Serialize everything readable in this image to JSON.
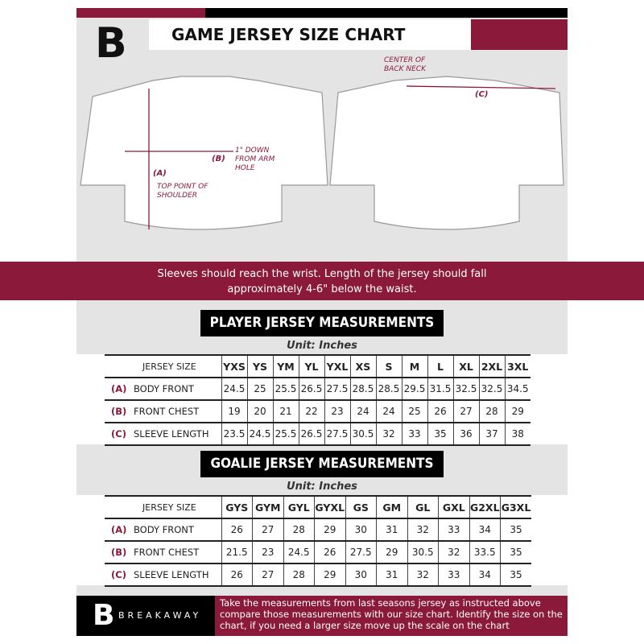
{
  "header": {
    "title": "GAME JERSEY SIZE CHART",
    "logo_letter": "B"
  },
  "diagram": {
    "labels": {
      "a": "(A)",
      "b": "(B)",
      "c": "(C)",
      "top_point": "TOP POINT OF SHOULDER",
      "arm_hole": "1\" DOWN FROM ARM HOLE",
      "back_neck": "CENTER OF BACK NECK"
    }
  },
  "notice": {
    "line1": "Sleeves should reach the wrist. Length of the jersey should fall",
    "line2": "approximately 4-6\" below the waist."
  },
  "colors": {
    "accent": "#8b1a3a",
    "dark": "#000000",
    "background": "#e4e4e4"
  },
  "player": {
    "title": "PLAYER JERSEY MEASUREMENTS",
    "unit": "Unit: Inches",
    "size_header": "JERSEY SIZE",
    "sizes": [
      "YXS",
      "YS",
      "YM",
      "YL",
      "YXL",
      "XS",
      "S",
      "M",
      "L",
      "XL",
      "2XL",
      "3XL"
    ],
    "rows": [
      {
        "code": "(A)",
        "label": "BODY FRONT",
        "values": [
          "24.5",
          "25",
          "25.5",
          "26.5",
          "27.5",
          "28.5",
          "28.5",
          "29.5",
          "31.5",
          "32.5",
          "32.5",
          "34.5"
        ]
      },
      {
        "code": "(B)",
        "label": "FRONT CHEST",
        "values": [
          "19",
          "20",
          "21",
          "22",
          "23",
          "24",
          "24",
          "25",
          "26",
          "27",
          "28",
          "29"
        ]
      },
      {
        "code": "(C)",
        "label": "SLEEVE LENGTH",
        "values": [
          "23.5",
          "24.5",
          "25.5",
          "26.5",
          "27.5",
          "30.5",
          "32",
          "33",
          "35",
          "36",
          "37",
          "38"
        ]
      }
    ]
  },
  "goalie": {
    "title": "GOALIE JERSEY MEASUREMENTS",
    "unit": "Unit: Inches",
    "size_header": "JERSEY SIZE",
    "sizes": [
      "GYS",
      "GYM",
      "GYL",
      "GYXL",
      "GS",
      "GM",
      "GL",
      "GXL",
      "G2XL",
      "G3XL"
    ],
    "rows": [
      {
        "code": "(A)",
        "label": "BODY FRONT",
        "values": [
          "26",
          "27",
          "28",
          "29",
          "30",
          "31",
          "32",
          "33",
          "34",
          "35"
        ]
      },
      {
        "code": "(B)",
        "label": "FRONT CHEST",
        "values": [
          "21.5",
          "23",
          "24.5",
          "26",
          "27.5",
          "29",
          "30.5",
          "32",
          "33.5",
          "35"
        ]
      },
      {
        "code": "(C)",
        "label": "SLEEVE LENGTH",
        "values": [
          "26",
          "27",
          "28",
          "29",
          "30",
          "31",
          "32",
          "33",
          "34",
          "35"
        ]
      }
    ]
  },
  "footer": {
    "brand": "BREAKAWAY",
    "logo_letter": "B",
    "text": "Take the measurements from last seasons jersey as instructed above compare those measurements  with our size chart. Identify the size on the chart, if you need a larger size move up the scale on the chart"
  }
}
